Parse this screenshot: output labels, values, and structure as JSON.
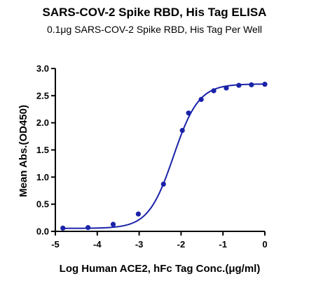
{
  "chart_data": {
    "type": "scatter",
    "title": "SARS-COV-2 Spike RBD, His Tag ELISA",
    "subtitle": "0.1μg SARS-COV-2 Spike RBD, His Tag Per Well",
    "xlabel": "Log Human ACE2, hFc Tag Conc.(μg/ml)",
    "ylabel": "Mean Abs.(OD450)",
    "xlim": [
      -5,
      0
    ],
    "ylim": [
      0,
      3.0
    ],
    "xticks": [
      -5,
      -4,
      -3,
      -2,
      -1,
      0
    ],
    "xtick_labels": [
      "-5",
      "-4",
      "-3",
      "-2",
      "-1",
      "0"
    ],
    "yticks": [
      0,
      0.5,
      1.0,
      1.5,
      2.0,
      2.5,
      3.0
    ],
    "ytick_labels": [
      "0.0",
      "0.5",
      "1.0",
      "1.5",
      "2.0",
      "2.5",
      "3.0"
    ],
    "grid": false,
    "legend": "none",
    "series": [
      {
        "x": [
          -4.82,
          -4.22,
          -3.62,
          -3.02,
          -2.42,
          -1.97,
          -1.82,
          -1.52,
          -1.22,
          -0.92,
          -0.62,
          -0.32,
          0
        ],
        "y": [
          0.06,
          0.07,
          0.13,
          0.32,
          0.87,
          1.86,
          2.18,
          2.43,
          2.59,
          2.64,
          2.69,
          2.7,
          2.71
        ]
      }
    ],
    "fit_curve": {
      "model": "4PL",
      "bottom": 0.055,
      "top": 2.715,
      "logEC50": -2.18,
      "hill": 1.45
    },
    "color": "#1a22a8"
  }
}
